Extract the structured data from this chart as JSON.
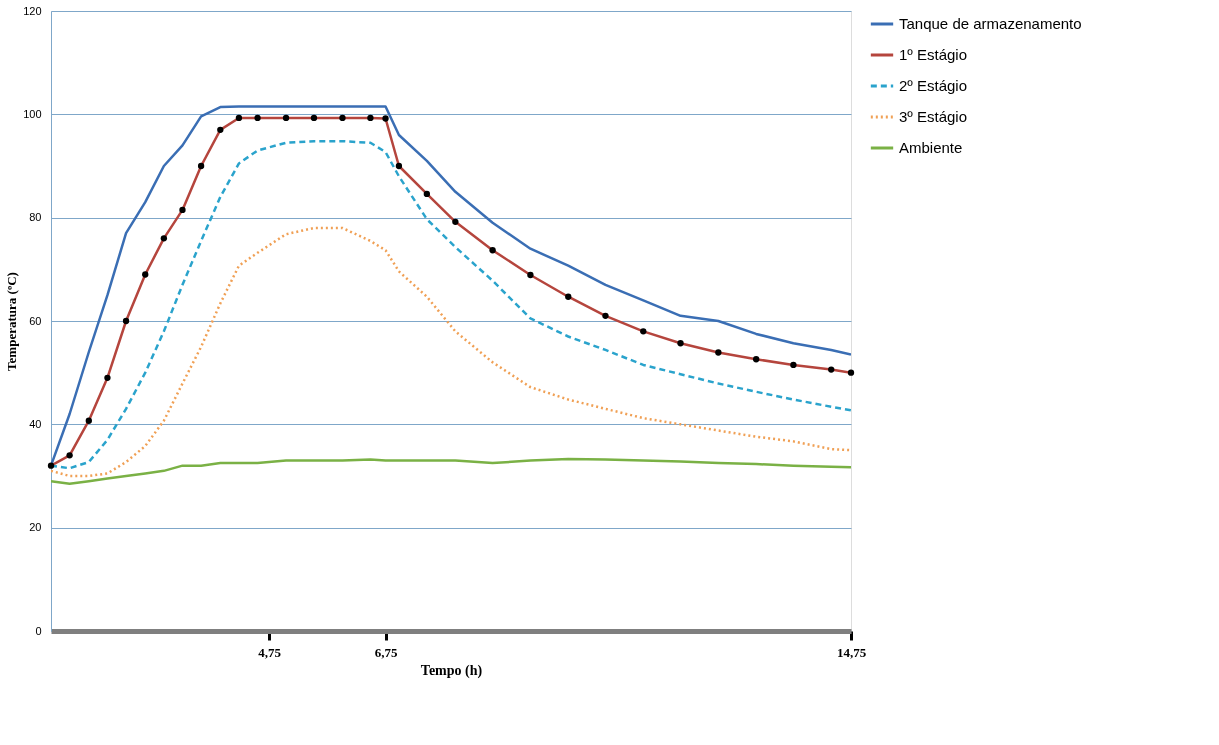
{
  "chart_data": {
    "type": "line",
    "xlabel": "Tempo (h)",
    "ylabel": "Temperatura (ºC)",
    "x": [
      1.0,
      1.32,
      1.65,
      1.97,
      2.29,
      2.62,
      2.94,
      3.26,
      3.58,
      3.91,
      4.23,
      4.55,
      5.04,
      5.52,
      6.01,
      6.49,
      6.75,
      6.98,
      7.46,
      7.95,
      8.59,
      9.24,
      9.89,
      10.53,
      11.18,
      11.82,
      12.47,
      13.12,
      13.76,
      14.41,
      14.75
    ],
    "xlim": [
      1.0,
      14.75
    ],
    "xticks": [
      {
        "value": 4.75,
        "label": "4,75"
      },
      {
        "value": 6.75,
        "label": "6,75"
      },
      {
        "value": 14.75,
        "label": "14,75"
      }
    ],
    "ylim": [
      0,
      120
    ],
    "yticks": [
      0,
      20,
      40,
      60,
      80,
      100,
      120
    ],
    "grid": "y",
    "legend": "right",
    "series": [
      {
        "name": "Tanque de armazenamento",
        "color": "#3a6eb4",
        "line_style": "solid",
        "values": [
          32,
          42,
          54,
          65,
          77,
          83,
          90,
          94,
          99.6,
          101.4,
          101.5,
          101.5,
          101.5,
          101.5,
          101.5,
          101.5,
          101.5,
          96,
          91,
          85,
          79,
          74,
          70.7,
          67,
          64,
          61,
          60,
          57.5,
          55.7,
          54.4,
          53.5
        ]
      },
      {
        "name": "1º Estágio",
        "color": "#b5453d",
        "line_style": "solid",
        "marker": "circle",
        "values": [
          32,
          34,
          40.7,
          49,
          60,
          69,
          76,
          81.5,
          90,
          97,
          99.3,
          99.3,
          99.3,
          99.3,
          99.3,
          99.3,
          99.2,
          90,
          84.6,
          79.2,
          73.7,
          68.9,
          64.7,
          61,
          58,
          55.7,
          53.9,
          52.6,
          51.5,
          50.6,
          50
        ]
      },
      {
        "name": "2º Estágio",
        "color": "#2aa3cc",
        "line_style": "dashed",
        "values": [
          32,
          31.5,
          32.7,
          37,
          43,
          50,
          58,
          67,
          75.5,
          84,
          90.5,
          93,
          94.5,
          94.8,
          94.8,
          94.5,
          92.7,
          88,
          79.7,
          74.3,
          67.8,
          60.5,
          57,
          54.4,
          51.5,
          49.7,
          47.9,
          46.3,
          44.8,
          43.4,
          42.7
        ]
      },
      {
        "name": "3º Estágio",
        "color": "#f0a055",
        "line_style": "dotted",
        "values": [
          31,
          30,
          30,
          30.5,
          32.7,
          35.8,
          40.7,
          47.9,
          55,
          63.4,
          70.7,
          73.2,
          76.8,
          78,
          78,
          75.5,
          73.7,
          69.6,
          64.7,
          58,
          52,
          47.2,
          44.8,
          43,
          41.2,
          40,
          38.8,
          37.6,
          36.7,
          35.2,
          35
        ]
      },
      {
        "name": "Ambiente",
        "color": "#7ab145",
        "line_style": "solid",
        "values": [
          29,
          28.5,
          29,
          29.5,
          30,
          30.5,
          31,
          32,
          32,
          32.5,
          32.5,
          32.5,
          33,
          33,
          33,
          33.2,
          33,
          33,
          33,
          33,
          32.5,
          33,
          33.3,
          33.2,
          33,
          32.8,
          32.5,
          32.3,
          32,
          31.8,
          31.7
        ]
      }
    ]
  }
}
